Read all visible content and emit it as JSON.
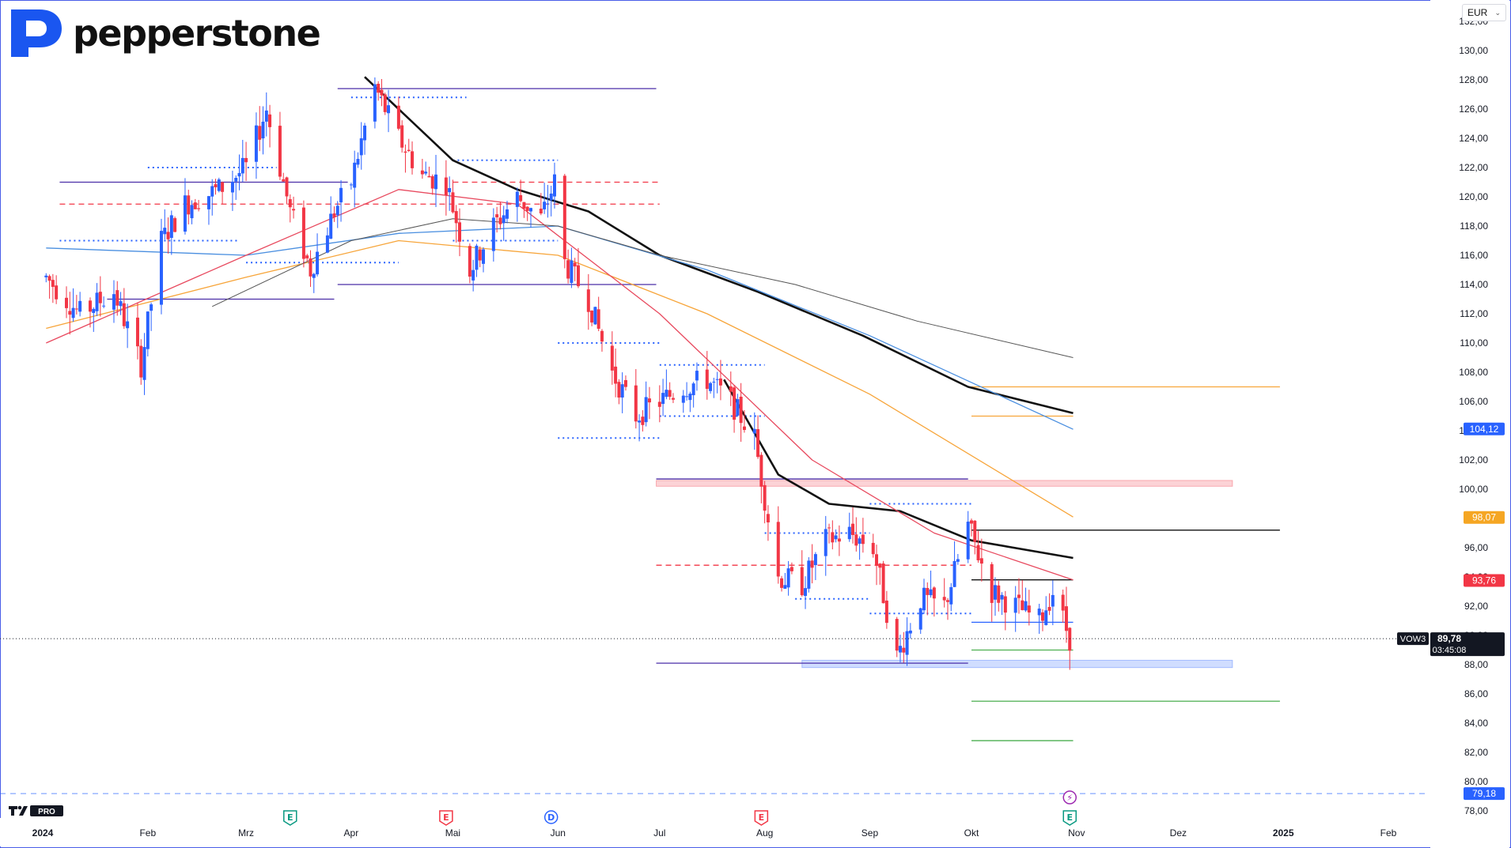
{
  "brand": {
    "name": "pepperstone"
  },
  "currency_selector": {
    "value": "EUR",
    "icon": "chevron-down-icon"
  },
  "footer": {
    "logo_icon": "tradingview-logo-icon",
    "logo_text": "PRO"
  },
  "chart_data": {
    "type": "candlestick",
    "symbol": "VOW3",
    "price_scale": {
      "min": 78,
      "max": 132,
      "step": 2,
      "decimal_separator": ","
    },
    "y_ticks": [
      "78,00",
      "80,00",
      "82,00",
      "84,00",
      "86,00",
      "88,00",
      "90,00",
      "92,00",
      "94,00",
      "96,00",
      "98,00",
      "100,00",
      "102,00",
      "104,00",
      "106,00",
      "108,00",
      "110,00",
      "112,00",
      "114,00",
      "116,00",
      "118,00",
      "120,00",
      "122,00",
      "124,00",
      "126,00",
      "128,00",
      "130,00",
      "132,00"
    ],
    "x_ticks": [
      {
        "label": "2024",
        "date": "2024-01-01"
      },
      {
        "label": "Feb",
        "date": "2024-02-01"
      },
      {
        "label": "Mrz",
        "date": "2024-03-01"
      },
      {
        "label": "Apr",
        "date": "2024-04-01"
      },
      {
        "label": "Mai",
        "date": "2024-05-01"
      },
      {
        "label": "Jun",
        "date": "2024-06-01"
      },
      {
        "label": "Jul",
        "date": "2024-07-01"
      },
      {
        "label": "Aug",
        "date": "2024-08-01"
      },
      {
        "label": "Sep",
        "date": "2024-09-01"
      },
      {
        "label": "Okt",
        "date": "2024-10-01"
      },
      {
        "label": "Nov",
        "date": "2024-11-01"
      },
      {
        "label": "Dez",
        "date": "2024-12-01"
      },
      {
        "label": "2025",
        "date": "2025-01-01"
      },
      {
        "label": "Feb",
        "date": "2025-02-01"
      }
    ],
    "price_labels": [
      {
        "text": "104,12",
        "value": 104.12,
        "color": "#2962ff"
      },
      {
        "text": "98,07",
        "value": 98.07,
        "color": "#f5a623"
      },
      {
        "text": "93,76",
        "value": 93.76,
        "color": "#f23645"
      },
      {
        "text": "79,18",
        "value": 79.18,
        "color": "#2962ff"
      }
    ],
    "last_price": {
      "symbol": "VOW3",
      "price": "89,78",
      "countdown": "03:45:08",
      "value": 89.78
    },
    "horizontal_dashed": {
      "value": 79.18,
      "color": "#2962ff"
    },
    "candle_path": [
      {
        "date": "2024-01-02",
        "price": 114.5
      },
      {
        "date": "2024-01-12",
        "price": 112.0
      },
      {
        "date": "2024-01-22",
        "price": 113.5
      },
      {
        "date": "2024-01-30",
        "price": 108.5
      },
      {
        "date": "2024-02-05",
        "price": 117.0
      },
      {
        "date": "2024-02-12",
        "price": 119.5
      },
      {
        "date": "2024-02-22",
        "price": 120.5
      },
      {
        "date": "2024-03-01",
        "price": 122.0
      },
      {
        "date": "2024-03-07",
        "price": 126.0
      },
      {
        "date": "2024-03-14",
        "price": 119.0
      },
      {
        "date": "2024-03-20",
        "price": 115.0
      },
      {
        "date": "2024-03-27",
        "price": 119.0
      },
      {
        "date": "2024-04-01",
        "price": 121.0
      },
      {
        "date": "2024-04-08",
        "price": 127.5
      },
      {
        "date": "2024-04-15",
        "price": 124.0
      },
      {
        "date": "2024-04-22",
        "price": 121.5
      },
      {
        "date": "2024-04-29",
        "price": 121.0
      },
      {
        "date": "2024-05-06",
        "price": 115.0
      },
      {
        "date": "2024-05-13",
        "price": 118.0
      },
      {
        "date": "2024-05-20",
        "price": 120.0
      },
      {
        "date": "2024-05-27",
        "price": 118.5
      },
      {
        "date": "2024-05-31",
        "price": 121.0
      },
      {
        "date": "2024-06-03",
        "price": 115.5
      },
      {
        "date": "2024-06-10",
        "price": 113.0
      },
      {
        "date": "2024-06-17",
        "price": 108.0
      },
      {
        "date": "2024-06-24",
        "price": 105.0
      },
      {
        "date": "2024-07-01",
        "price": 106.0
      },
      {
        "date": "2024-07-08",
        "price": 107.0
      },
      {
        "date": "2024-07-15",
        "price": 107.5
      },
      {
        "date": "2024-07-22",
        "price": 106.0
      },
      {
        "date": "2024-07-29",
        "price": 103.5
      },
      {
        "date": "2024-08-05",
        "price": 94.0
      },
      {
        "date": "2024-08-12",
        "price": 93.5
      },
      {
        "date": "2024-08-19",
        "price": 96.5
      },
      {
        "date": "2024-08-26",
        "price": 97.0
      },
      {
        "date": "2024-09-02",
        "price": 96.0
      },
      {
        "date": "2024-09-09",
        "price": 88.5
      },
      {
        "date": "2024-09-16",
        "price": 92.5
      },
      {
        "date": "2024-09-23",
        "price": 92.0
      },
      {
        "date": "2024-09-30",
        "price": 97.5
      },
      {
        "date": "2024-10-07",
        "price": 93.0
      },
      {
        "date": "2024-10-14",
        "price": 92.0
      },
      {
        "date": "2024-10-21",
        "price": 91.0
      },
      {
        "date": "2024-10-25",
        "price": 93.0
      },
      {
        "date": "2024-10-30",
        "price": 89.8
      }
    ],
    "price_bands": [
      {
        "from": "2024-06-30",
        "to": "2024-12-17",
        "low": 100.2,
        "high": 100.6,
        "color": "#f23645"
      },
      {
        "from": "2024-08-12",
        "to": "2024-12-17",
        "low": 87.8,
        "high": 88.3,
        "color": "#2962ff"
      }
    ],
    "indicators": [
      {
        "style": "solid",
        "color": "#111111",
        "points": [
          {
            "date": "2024-04-05",
            "price": 128.2
          },
          {
            "date": "2024-04-15",
            "price": 126.0
          },
          {
            "date": "2024-05-01",
            "price": 122.5
          },
          {
            "date": "2024-05-20",
            "price": 120.5
          },
          {
            "date": "2024-06-10",
            "price": 119.0
          },
          {
            "date": "2024-07-01",
            "price": 116.0
          },
          {
            "date": "2024-07-30",
            "price": 113.5
          },
          {
            "date": "2024-08-30",
            "price": 110.5
          },
          {
            "date": "2024-09-30",
            "price": 107.0
          },
          {
            "date": "2024-10-31",
            "price": 105.2
          }
        ]
      },
      {
        "style": "solid",
        "color": "#111111",
        "points": [
          {
            "date": "2024-07-20",
            "price": 107.5
          },
          {
            "date": "2024-08-05",
            "price": 101.0
          },
          {
            "date": "2024-08-20",
            "price": 99.0
          },
          {
            "date": "2024-09-10",
            "price": 98.5
          },
          {
            "date": "2024-10-01",
            "price": 96.5
          },
          {
            "date": "2024-10-31",
            "price": 95.3
          }
        ]
      },
      {
        "style": "solid",
        "color": "#f7a53a",
        "points": [
          {
            "date": "2024-01-02",
            "price": 111.0
          },
          {
            "date": "2024-03-01",
            "price": 114.5
          },
          {
            "date": "2024-04-15",
            "price": 117.0
          },
          {
            "date": "2024-06-01",
            "price": 116.0
          },
          {
            "date": "2024-07-15",
            "price": 112.0
          },
          {
            "date": "2024-09-01",
            "price": 106.5
          },
          {
            "date": "2024-10-31",
            "price": 98.1
          }
        ]
      },
      {
        "style": "solid",
        "color": "#4a8fe0",
        "points": [
          {
            "date": "2024-01-02",
            "price": 116.5
          },
          {
            "date": "2024-03-01",
            "price": 116.0
          },
          {
            "date": "2024-04-15",
            "price": 117.5
          },
          {
            "date": "2024-06-01",
            "price": 118.0
          },
          {
            "date": "2024-07-15",
            "price": 115.0
          },
          {
            "date": "2024-09-01",
            "price": 110.5
          },
          {
            "date": "2024-10-31",
            "price": 104.1
          }
        ]
      },
      {
        "style": "solid",
        "color": "#e84a5f",
        "points": [
          {
            "date": "2024-01-02",
            "price": 110.0
          },
          {
            "date": "2024-03-01",
            "price": 116.0
          },
          {
            "date": "2024-04-15",
            "price": 120.5
          },
          {
            "date": "2024-05-20",
            "price": 119.5
          },
          {
            "date": "2024-07-01",
            "price": 112.0
          },
          {
            "date": "2024-08-15",
            "price": 102.0
          },
          {
            "date": "2024-09-20",
            "price": 97.0
          },
          {
            "date": "2024-10-31",
            "price": 93.8
          }
        ]
      },
      {
        "style": "thin",
        "color": "#555555",
        "points": [
          {
            "date": "2024-02-20",
            "price": 112.5
          },
          {
            "date": "2024-04-01",
            "price": 117.0
          },
          {
            "date": "2024-05-01",
            "price": 118.5
          },
          {
            "date": "2024-06-01",
            "price": 118.0
          },
          {
            "date": "2024-07-01",
            "price": 116.0
          },
          {
            "date": "2024-08-10",
            "price": 114.0
          },
          {
            "date": "2024-09-15",
            "price": 111.5
          },
          {
            "date": "2024-10-31",
            "price": 109.0
          }
        ]
      }
    ],
    "horizontal_lines": [
      {
        "from": "2024-03-28",
        "to": "2024-06-30",
        "value": 127.4,
        "color": "#4b2fa8",
        "style": "solid"
      },
      {
        "from": "2024-01-06",
        "to": "2024-03-31",
        "value": 121.0,
        "color": "#4b2fa8",
        "style": "solid"
      },
      {
        "from": "2024-03-28",
        "to": "2024-06-30",
        "value": 114.0,
        "color": "#4b2fa8",
        "style": "solid"
      },
      {
        "from": "2024-01-20",
        "to": "2024-03-27",
        "value": 113.0,
        "color": "#4b2fa8",
        "style": "solid"
      },
      {
        "from": "2024-06-30",
        "to": "2024-09-30",
        "value": 100.7,
        "color": "#4b2fa8",
        "style": "solid"
      },
      {
        "from": "2024-06-30",
        "to": "2024-09-30",
        "value": 88.1,
        "color": "#4b2fa8",
        "style": "solid"
      },
      {
        "from": "2024-01-06",
        "to": "2024-07-01",
        "value": 119.5,
        "color": "#f23645",
        "style": "dashed"
      },
      {
        "from": "2024-05-01",
        "to": "2024-07-01",
        "value": 121.0,
        "color": "#f23645",
        "style": "dashed"
      },
      {
        "from": "2024-06-30",
        "to": "2024-10-01",
        "value": 94.8,
        "color": "#f23645",
        "style": "dashed"
      },
      {
        "from": "2024-10-01",
        "to": "2024-12-31",
        "value": 107.0,
        "color": "#f7a53a",
        "style": "solid"
      },
      {
        "from": "2024-10-01",
        "to": "2024-10-31",
        "value": 105.0,
        "color": "#f7a53a",
        "style": "solid"
      },
      {
        "from": "2024-10-01",
        "to": "2024-12-31",
        "value": 97.2,
        "color": "#111111",
        "style": "solid"
      },
      {
        "from": "2024-10-01",
        "to": "2024-10-31",
        "value": 93.8,
        "color": "#111111",
        "style": "solid"
      },
      {
        "from": "2024-10-01",
        "to": "2024-10-31",
        "value": 90.9,
        "color": "#2962ff",
        "style": "solid"
      },
      {
        "from": "2024-10-01",
        "to": "2024-10-31",
        "value": 89.0,
        "color": "#4caf50",
        "style": "solid"
      },
      {
        "from": "2024-10-01",
        "to": "2024-12-31",
        "value": 85.5,
        "color": "#4caf50",
        "style": "solid"
      },
      {
        "from": "2024-10-01",
        "to": "2024-10-31",
        "value": 82.8,
        "color": "#4caf50",
        "style": "solid"
      },
      {
        "from": "2024-03-01",
        "to": "2024-04-15",
        "value": 115.5,
        "color": "#2962ff",
        "style": "dotted"
      },
      {
        "from": "2024-01-06",
        "to": "2024-02-28",
        "value": 117.0,
        "color": "#2962ff",
        "style": "dotted"
      },
      {
        "from": "2024-02-01",
        "to": "2024-03-10",
        "value": 122.0,
        "color": "#2962ff",
        "style": "dotted"
      },
      {
        "from": "2024-04-01",
        "to": "2024-05-05",
        "value": 126.8,
        "color": "#2962ff",
        "style": "dotted"
      },
      {
        "from": "2024-05-01",
        "to": "2024-06-01",
        "value": 122.5,
        "color": "#2962ff",
        "style": "dotted"
      },
      {
        "from": "2024-05-01",
        "to": "2024-06-01",
        "value": 117.0,
        "color": "#2962ff",
        "style": "dotted"
      },
      {
        "from": "2024-06-01",
        "to": "2024-07-01",
        "value": 110.0,
        "color": "#2962ff",
        "style": "dotted"
      },
      {
        "from": "2024-06-01",
        "to": "2024-07-01",
        "value": 103.5,
        "color": "#2962ff",
        "style": "dotted"
      },
      {
        "from": "2024-07-01",
        "to": "2024-08-01",
        "value": 108.5,
        "color": "#2962ff",
        "style": "dotted"
      },
      {
        "from": "2024-07-01",
        "to": "2024-08-01",
        "value": 105.0,
        "color": "#2962ff",
        "style": "dotted"
      },
      {
        "from": "2024-08-01",
        "to": "2024-09-01",
        "value": 97.0,
        "color": "#2962ff",
        "style": "dotted"
      },
      {
        "from": "2024-08-10",
        "to": "2024-09-01",
        "value": 92.5,
        "color": "#2962ff",
        "style": "dotted"
      },
      {
        "from": "2024-09-01",
        "to": "2024-10-01",
        "value": 99.0,
        "color": "#2962ff",
        "style": "dotted"
      },
      {
        "from": "2024-09-01",
        "to": "2024-10-01",
        "value": 91.5,
        "color": "#2962ff",
        "style": "dotted"
      }
    ],
    "event_markers": [
      {
        "date": "2024-03-14",
        "letter": "E",
        "color": "#089981"
      },
      {
        "date": "2024-04-29",
        "letter": "E",
        "color": "#f23645"
      },
      {
        "date": "2024-05-30",
        "letter": "D",
        "color": "#2962ff"
      },
      {
        "date": "2024-07-31",
        "letter": "E",
        "color": "#f23645"
      },
      {
        "date": "2024-10-30",
        "letter": "E",
        "color": "#089981"
      },
      {
        "date": "2024-10-30",
        "letter": "⚡",
        "color": "#9c27b0",
        "row": "upper"
      }
    ]
  }
}
